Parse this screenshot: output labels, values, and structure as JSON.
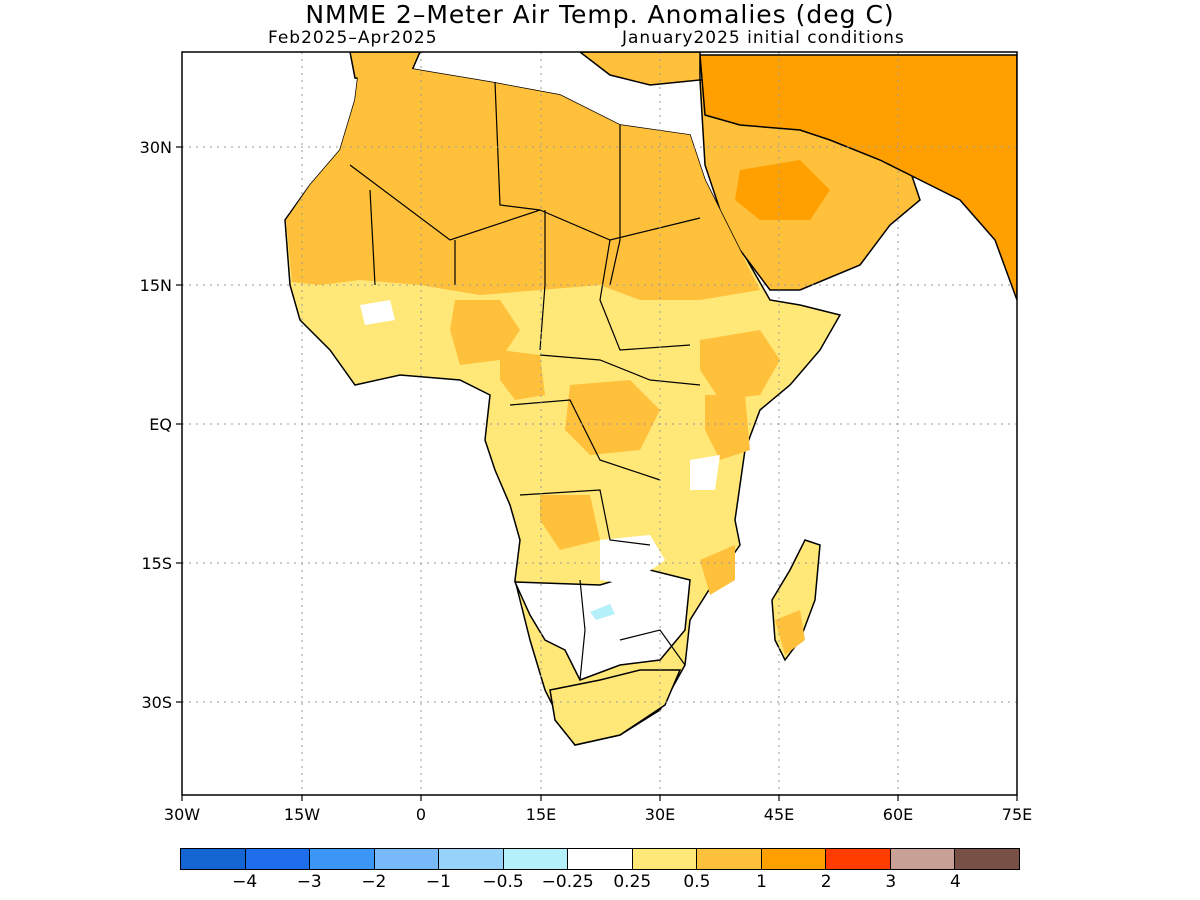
{
  "header": {
    "title": "NMME 2–Meter Air Temp. Anomalies (deg C)",
    "period": "Feb2025–Apr2025",
    "init": "January2025 initial conditions"
  },
  "map": {
    "lat_labels": [
      "30N",
      "15N",
      "EQ",
      "15S",
      "30S"
    ],
    "lon_labels": [
      "30W",
      "15W",
      "0",
      "15E",
      "30E",
      "45E",
      "60E",
      "75E"
    ],
    "extent": {
      "lon": [
        -30,
        75
      ],
      "lat": [
        -40,
        40
      ]
    }
  },
  "colorbar": {
    "colors": [
      "#1464d2",
      "#1e6eeb",
      "#3c96f5",
      "#78b9fa",
      "#96d2fa",
      "#b4f0fa",
      "#ffffff",
      "#ffe878",
      "#ffc03c",
      "#ffa000",
      "#ff3c00",
      "#c8a096",
      "#785046"
    ],
    "labels": [
      "−4",
      "−3",
      "−2",
      "−1",
      "−0.5",
      "−0.25",
      "0.25",
      "0.5",
      "1",
      "2",
      "3",
      "4"
    ]
  }
}
